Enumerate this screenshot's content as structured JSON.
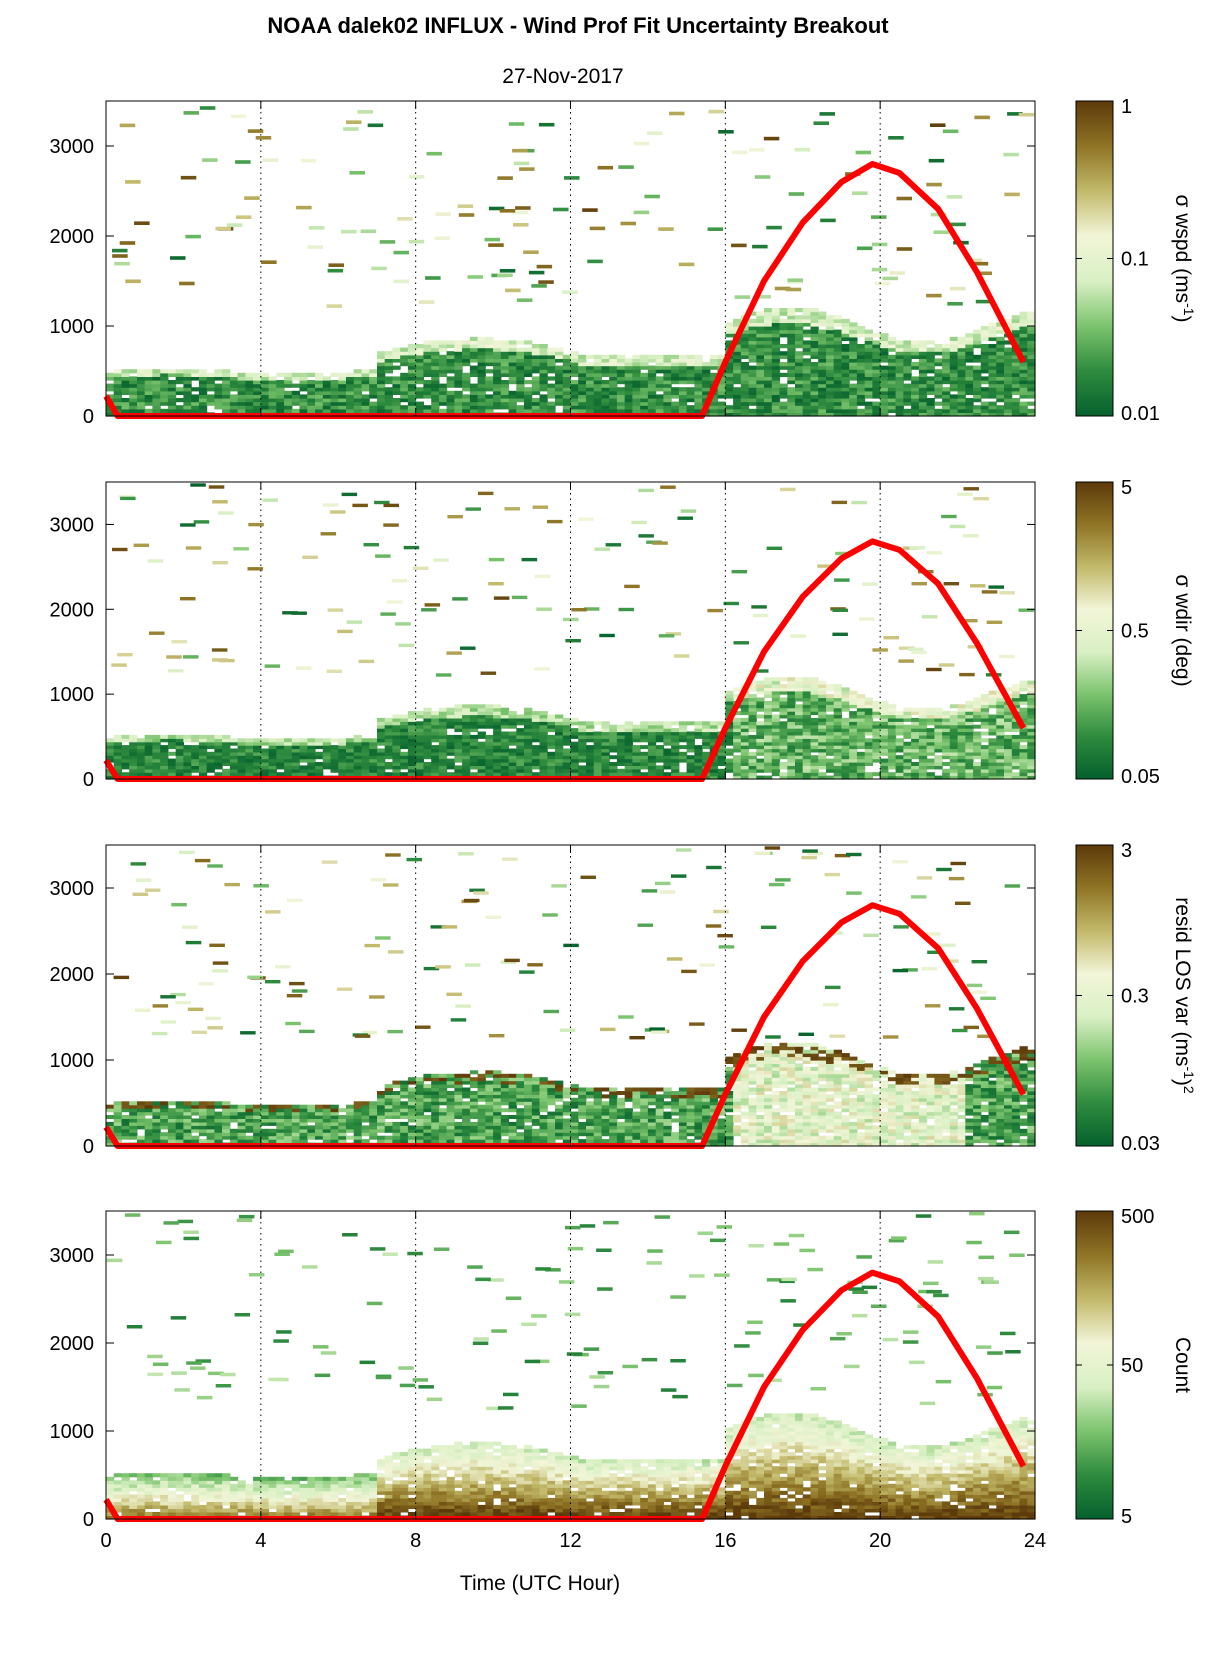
{
  "title": "NOAA dalek02 INFLUX - Wind Prof Fit Uncertainty Breakout",
  "subtitle": "27-Nov-2017",
  "xlabel": "Time (UTC Hour)",
  "colormap": [
    "#05612d",
    "#2e8b3e",
    "#7cc46e",
    "#d9f0c4",
    "#f2f5d8",
    "#c2b96a",
    "#8f7425",
    "#5c3a0a"
  ],
  "chart_data": [
    {
      "type": "heatmap",
      "panel": "wspd",
      "colorbar_label": "σ wspd (ms-1)",
      "colorbar_label_main": "σ wspd (ms",
      "colorbar_label_sup": "-1",
      "colorbar_label_end": ")",
      "colorbar_ticks": [
        "1",
        "0.1",
        "0.01"
      ],
      "colorbar_scale": "log",
      "clim": [
        0.01,
        1
      ]
    },
    {
      "type": "heatmap",
      "panel": "wdir",
      "colorbar_label": "σ wdir (deg)",
      "colorbar_label_main": "σ wdir (deg)",
      "colorbar_label_sup": "",
      "colorbar_label_end": "",
      "colorbar_ticks": [
        "5",
        "0.5",
        "0.05"
      ],
      "colorbar_scale": "log",
      "clim": [
        0.05,
        5
      ]
    },
    {
      "type": "heatmap",
      "panel": "resid",
      "colorbar_label": "resid LOS var (ms-1)2",
      "colorbar_label_main": "resid LOS var (ms",
      "colorbar_label_sup": "-1",
      "colorbar_label_end": ")",
      "colorbar_label_sup2": "2",
      "colorbar_ticks": [
        "3",
        "0.3",
        "0.03"
      ],
      "colorbar_scale": "log",
      "clim": [
        0.03,
        3
      ]
    },
    {
      "type": "heatmap",
      "panel": "count",
      "colorbar_label": "Count",
      "colorbar_label_main": "Count",
      "colorbar_label_sup": "",
      "colorbar_label_end": "",
      "colorbar_ticks": [
        "500",
        "50",
        "5"
      ],
      "colorbar_scale": "log",
      "clim": [
        1,
        500
      ]
    }
  ],
  "x_axis": {
    "range": [
      0,
      24
    ],
    "ticks": [
      0,
      4,
      8,
      12,
      16,
      20,
      24
    ],
    "tick_labels": [
      "0",
      "4",
      "8",
      "12",
      "16",
      "20",
      "24"
    ],
    "grid": "dotted vertical"
  },
  "y_axis": {
    "range": [
      0,
      3500
    ],
    "ticks": [
      0,
      1000,
      2000,
      3000
    ],
    "tick_labels": [
      "0",
      "1000",
      "2000",
      "3000"
    ]
  },
  "overlay_line": {
    "color": "#ff0000",
    "x": [
      0,
      0.3,
      15.4,
      16,
      17,
      18,
      19,
      19.8,
      20.5,
      21.5,
      22.5,
      23.7
    ],
    "y": [
      220,
      0,
      0,
      600,
      1500,
      2150,
      2600,
      2800,
      2700,
      2300,
      1600,
      600
    ]
  }
}
